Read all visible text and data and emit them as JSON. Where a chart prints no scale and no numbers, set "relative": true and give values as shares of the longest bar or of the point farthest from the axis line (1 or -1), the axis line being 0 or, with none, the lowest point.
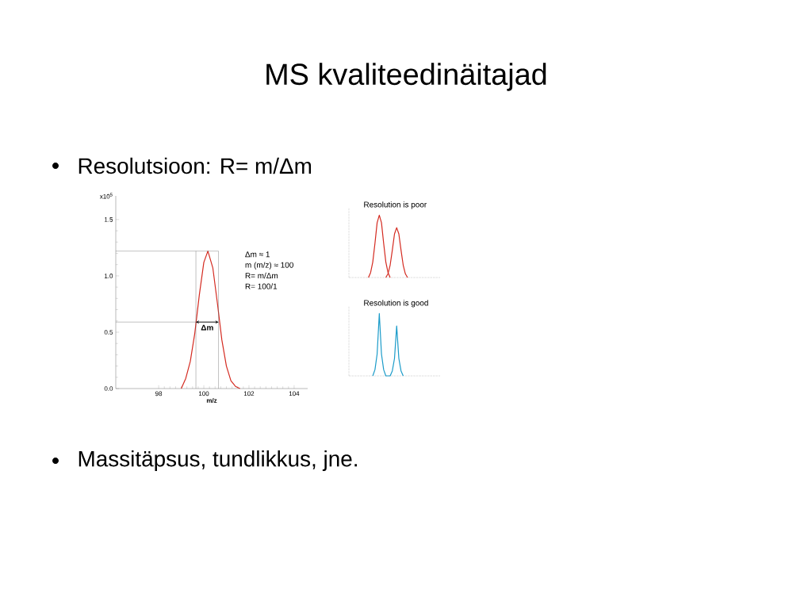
{
  "chart_data": [
    {
      "type": "line",
      "title": "MS kvaliteedinäitajad",
      "subtitle": "Resolutsioon: R= m/Δm",
      "xlabel": "m/z",
      "ylabel": "x10$^{5}$",
      "annotations": [
        "Δm ≈ 1",
        "m (m/z) ≈ 100",
        "R= m/Δm",
        "R= 100/1",
        "Δm",
        "Massitäpsus, tundlikkus, jne."
      ],
      "x": [
        99.0,
        99.2,
        99.4,
        99.6,
        99.8,
        100.0,
        100.18,
        100.4,
        100.6,
        100.8,
        101.0,
        101.2,
        101.4,
        101.6
      ],
      "values": [
        0,
        0.09,
        0.24,
        0.49,
        0.83,
        1.12,
        1.22,
        1.07,
        0.76,
        0.43,
        0.2,
        0.07,
        0.02,
        0
      ],
      "color": "#d42a20",
      "xlim": [
        96.1,
        104.6
      ],
      "ylim": [
        0,
        1.71
      ],
      "xticks": [
        98,
        100,
        102,
        104
      ],
      "yticks": [
        {
          "value": 0,
          "label": "0.0"
        },
        {
          "value": 0.5,
          "label": "0.5"
        },
        {
          "value": 1,
          "label": "1.0"
        },
        {
          "value": 1.5,
          "label": "1.5"
        }
      ],
      "ref_lines": [
        {
          "axis": "x",
          "value": 99.65
        },
        {
          "axis": "x",
          "value": 100.65
        },
        {
          "axis": "y",
          "value": 1.22
        },
        {
          "axis": "y",
          "value": 0.59
        }
      ],
      "marker": "none",
      "line_style": "solid"
    },
    {
      "type": "line",
      "title": "Resolution is poor",
      "relative": true,
      "categories": [
        null,
        null,
        null,
        null,
        null,
        null,
        null,
        null,
        null,
        null,
        null,
        null,
        null,
        null,
        null,
        null,
        null,
        null,
        null,
        null,
        null,
        null,
        null,
        null,
        null,
        null,
        null,
        null,
        null,
        null,
        null,
        null,
        null,
        null,
        null,
        null,
        null,
        null,
        null,
        null,
        null
      ],
      "series": [
        {
          "color": "#d42a20",
          "values": [
            null,
            null,
            null,
            null,
            null,
            null,
            null,
            null,
            0,
            0.08,
            0.25,
            0.55,
            0.88,
            1.0,
            0.88,
            0.55,
            0.25,
            0.08,
            0,
            null,
            null,
            null,
            null,
            null,
            null,
            null,
            null,
            null,
            null,
            null,
            null,
            null,
            null,
            null,
            null,
            null,
            null,
            null,
            null,
            null,
            null
          ]
        },
        {
          "color": "#d42a20",
          "values": [
            null,
            null,
            null,
            null,
            null,
            null,
            null,
            null,
            null,
            null,
            null,
            null,
            null,
            null,
            null,
            null,
            0,
            0.06,
            0.2,
            0.44,
            0.7,
            0.8,
            0.7,
            0.44,
            0.2,
            0.06,
            0,
            null,
            null,
            null,
            null,
            null,
            null,
            null,
            null,
            null,
            null,
            null,
            null,
            null,
            null
          ]
        }
      ],
      "marker": "none"
    },
    {
      "type": "line",
      "title": "Resolution is good",
      "relative": true,
      "categories": [
        null,
        null,
        null,
        null,
        null,
        null,
        null,
        null,
        null,
        null,
        null,
        null,
        null,
        null,
        null,
        null,
        null,
        null,
        null,
        null,
        null,
        null,
        null,
        null,
        null,
        null,
        null,
        null,
        null,
        null,
        null,
        null,
        null,
        null,
        null,
        null,
        null,
        null,
        null,
        null,
        null
      ],
      "series": [
        {
          "color": "#1a9bc9",
          "values": [
            null,
            null,
            null,
            null,
            null,
            null,
            null,
            null,
            null,
            null,
            0,
            0.1,
            0.35,
            1.0,
            0.35,
            0.1,
            0,
            0,
            0,
            0.08,
            0.28,
            0.8,
            0.28,
            0.08,
            0,
            null,
            null,
            null,
            null,
            null,
            null,
            null,
            null,
            null,
            null,
            null,
            null,
            null,
            null,
            null,
            null
          ]
        }
      ],
      "marker": "none"
    }
  ]
}
